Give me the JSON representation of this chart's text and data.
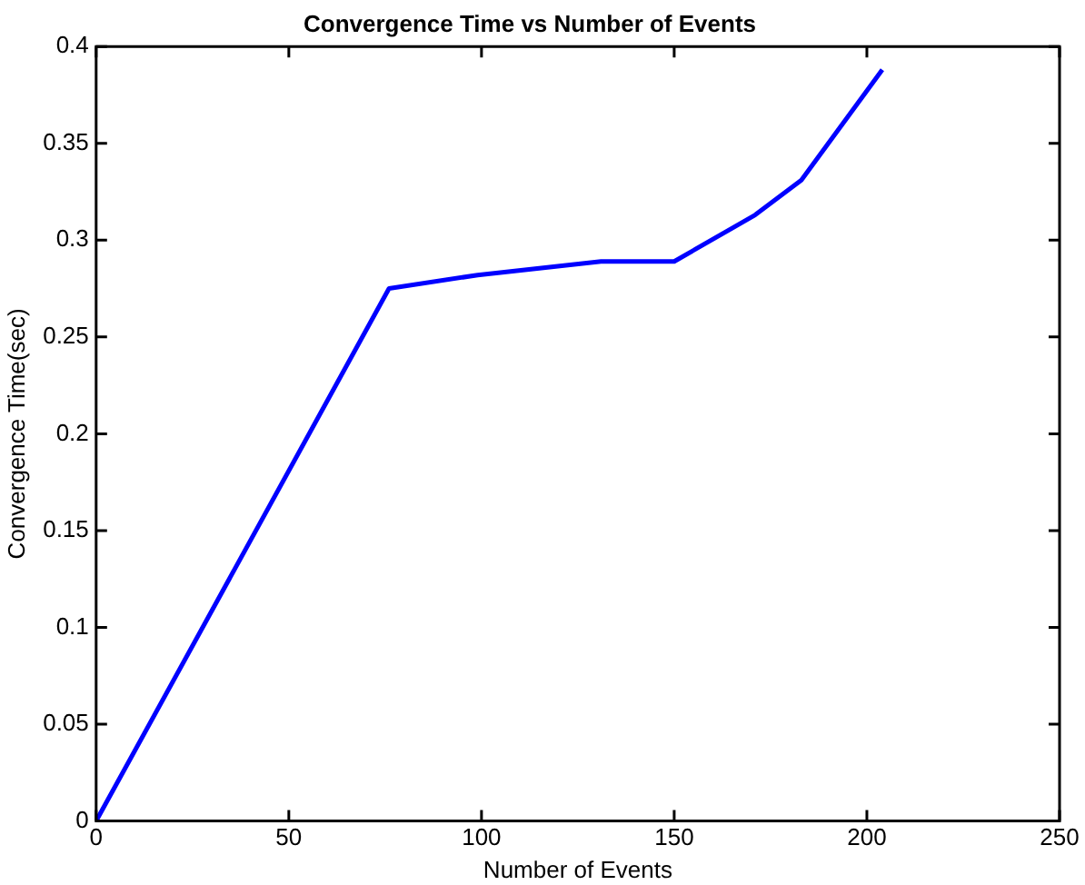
{
  "chart_data": {
    "type": "line",
    "title": "Convergence Time vs Number of Events",
    "xlabel": "Number of Events",
    "ylabel": "Convergence Time(sec)",
    "x": [
      0,
      76,
      99,
      131,
      150,
      171,
      183,
      204
    ],
    "series": [
      {
        "color": "#0000ff",
        "values": [
          0,
          0.275,
          0.282,
          0.289,
          0.289,
          0.313,
          0.331,
          0.388
        ]
      }
    ],
    "xlim": [
      0,
      250
    ],
    "xticks": [
      0,
      50,
      100,
      150,
      200,
      250
    ],
    "ylim": [
      0,
      0.4
    ],
    "yticks": [
      0,
      0.05,
      0.1,
      0.15,
      0.2,
      0.25,
      0.3,
      0.35,
      0.4
    ],
    "grid": false,
    "legend": false,
    "marker": "none",
    "line_style": "solid"
  }
}
